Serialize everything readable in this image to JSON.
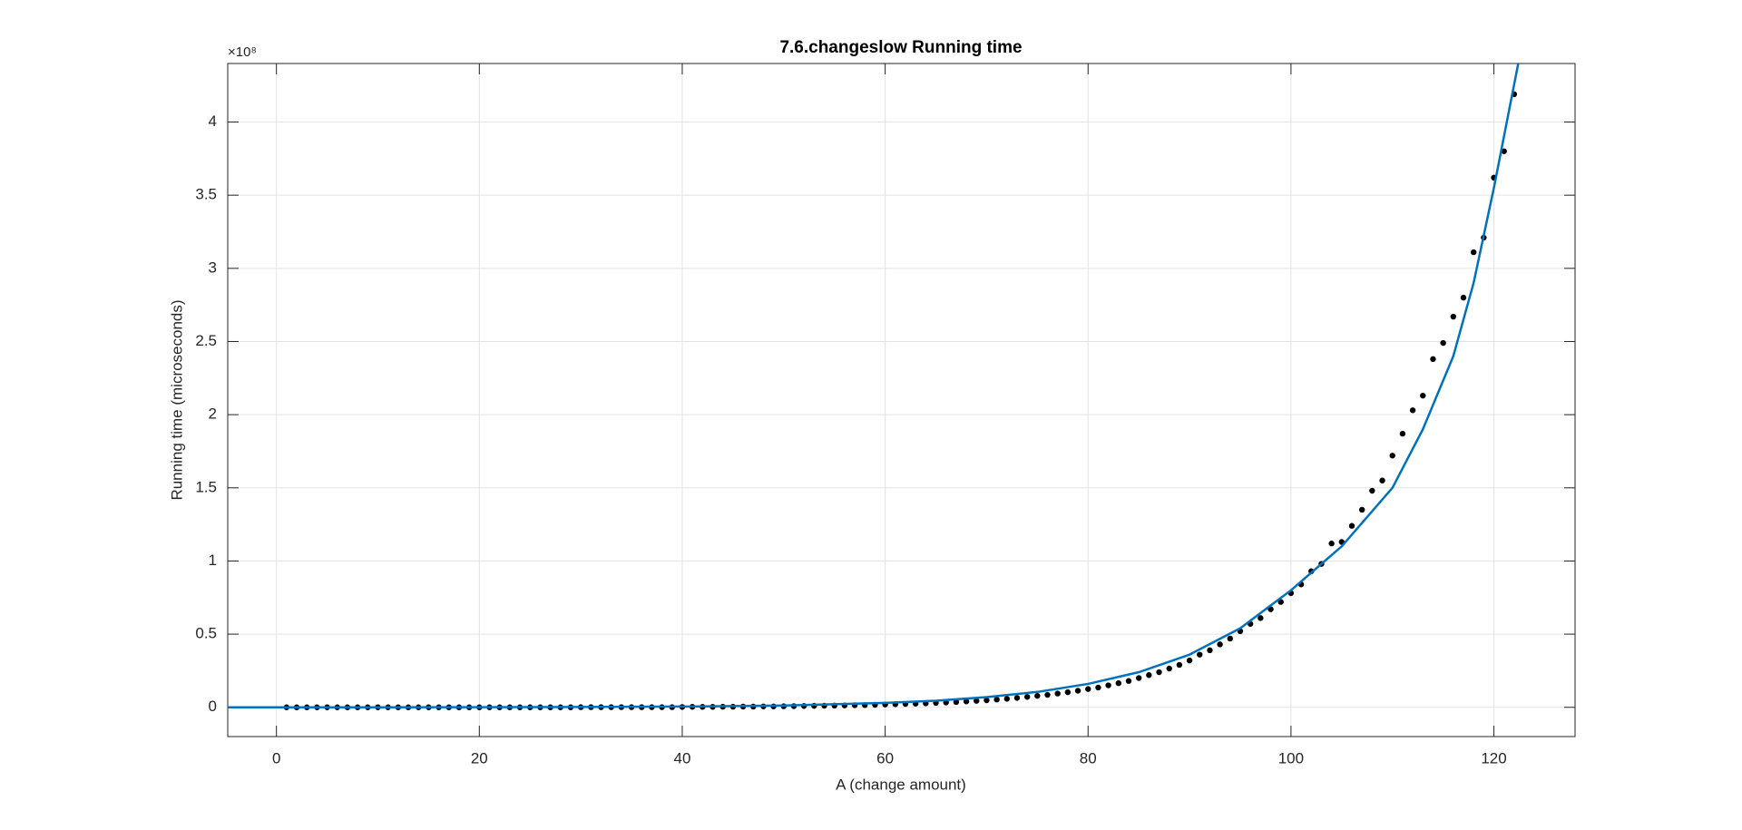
{
  "chart_data": {
    "type": "line",
    "title": "7.6.changeslow Running time",
    "x_label": "A (change amount)",
    "y_label": "Running time (microseconds)",
    "exponent_label": "×10⁸",
    "xlim": [
      -4.8,
      128
    ],
    "ylim": [
      -0.2,
      4.4
    ],
    "xticks": [
      0,
      20,
      40,
      60,
      80,
      100,
      120
    ],
    "yticks": [
      0,
      0.5,
      1,
      1.5,
      2,
      2.5,
      3,
      3.5,
      4
    ],
    "grid": true,
    "series": [
      {
        "mode": "markers",
        "color": "#000000",
        "x": [
          1,
          2,
          3,
          4,
          5,
          6,
          7,
          8,
          9,
          10,
          11,
          12,
          13,
          14,
          15,
          16,
          17,
          18,
          19,
          20,
          21,
          22,
          23,
          24,
          25,
          26,
          27,
          28,
          29,
          30,
          31,
          32,
          33,
          34,
          35,
          36,
          37,
          38,
          39,
          40,
          41,
          42,
          43,
          44,
          45,
          46,
          47,
          48,
          49,
          50,
          51,
          52,
          53,
          54,
          55,
          56,
          57,
          58,
          59,
          60,
          61,
          62,
          63,
          64,
          65,
          66,
          67,
          68,
          69,
          70,
          71,
          72,
          73,
          74,
          75,
          76,
          77,
          78,
          79,
          80,
          81,
          82,
          83,
          84,
          85,
          86,
          87,
          88,
          89,
          90,
          91,
          92,
          93,
          94,
          95,
          96,
          97,
          98,
          99,
          100,
          101,
          102,
          103,
          104,
          105,
          106,
          107,
          108,
          109,
          110,
          111,
          112,
          113,
          114,
          115,
          116,
          117,
          118,
          119,
          120,
          121,
          122
        ],
        "values": [
          0,
          0,
          0,
          0,
          0,
          0,
          0,
          0,
          0,
          0,
          0,
          0,
          0,
          0,
          0,
          0,
          0,
          0,
          0,
          0,
          0,
          0,
          0,
          0,
          0,
          0,
          0,
          0,
          0,
          0.001,
          0.001,
          0.001,
          0.001,
          0.001,
          0.001,
          0.001,
          0.001,
          0.001,
          0.001,
          0.002,
          0.003,
          0.003,
          0.003,
          0.004,
          0.004,
          0.005,
          0.005,
          0.006,
          0.006,
          0.007,
          0.008,
          0.009,
          0.01,
          0.011,
          0.012,
          0.013,
          0.014,
          0.015,
          0.017,
          0.019,
          0.021,
          0.023,
          0.025,
          0.027,
          0.03,
          0.033,
          0.036,
          0.04,
          0.044,
          0.048,
          0.053,
          0.058,
          0.064,
          0.071,
          0.078,
          0.085,
          0.094,
          0.103,
          0.113,
          0.125,
          0.135,
          0.15,
          0.165,
          0.18,
          0.2,
          0.22,
          0.24,
          0.265,
          0.29,
          0.32,
          0.36,
          0.39,
          0.43,
          0.47,
          0.52,
          0.57,
          0.61,
          0.67,
          0.72,
          0.78,
          0.84,
          0.93,
          0.98,
          1.12,
          1.13,
          1.24,
          1.35,
          1.48,
          1.55,
          1.72,
          1.87,
          2.03,
          2.13,
          2.38,
          2.49,
          2.67,
          2.8,
          3.11,
          3.21,
          3.62,
          3.8,
          4.19
        ]
      },
      {
        "mode": "line",
        "color": "#0072bd",
        "x": [
          -4.8,
          0,
          10,
          20,
          30,
          40,
          50,
          60,
          65,
          70,
          75,
          80,
          85,
          90,
          95,
          100,
          105,
          110,
          113,
          116,
          118,
          120,
          122.4
        ],
        "values": [
          0,
          0,
          0,
          0.001,
          0.002,
          0.005,
          0.012,
          0.03,
          0.045,
          0.07,
          0.105,
          0.16,
          0.24,
          0.36,
          0.54,
          0.8,
          1.1,
          1.5,
          1.9,
          2.4,
          2.9,
          3.55,
          4.4
        ]
      }
    ]
  }
}
